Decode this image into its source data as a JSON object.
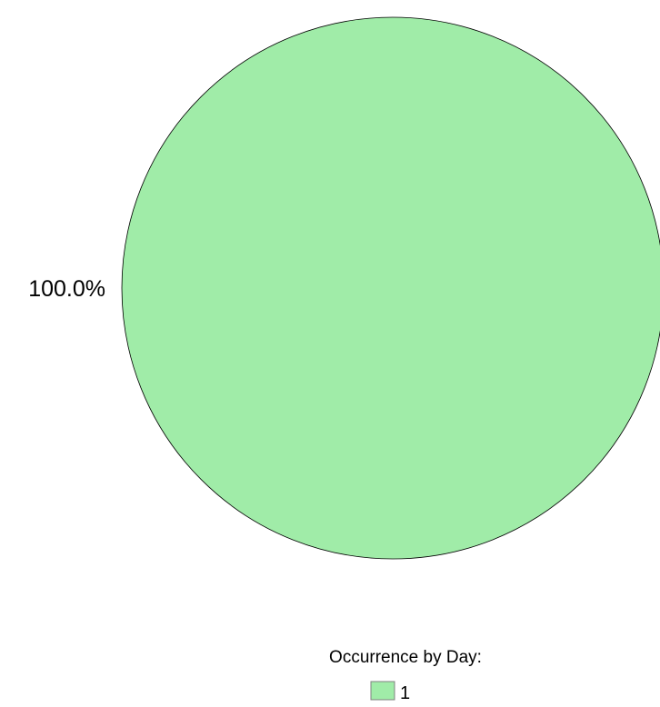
{
  "chart_data": {
    "type": "pie",
    "title": "",
    "legend_title": "Occurrence by Day:",
    "legend_placement": "bottom",
    "categories": [
      "1"
    ],
    "values": [
      1
    ],
    "percent_labels": [
      "100.0%"
    ],
    "colors": [
      "#a0eca8"
    ],
    "outline_color": "#000000"
  }
}
